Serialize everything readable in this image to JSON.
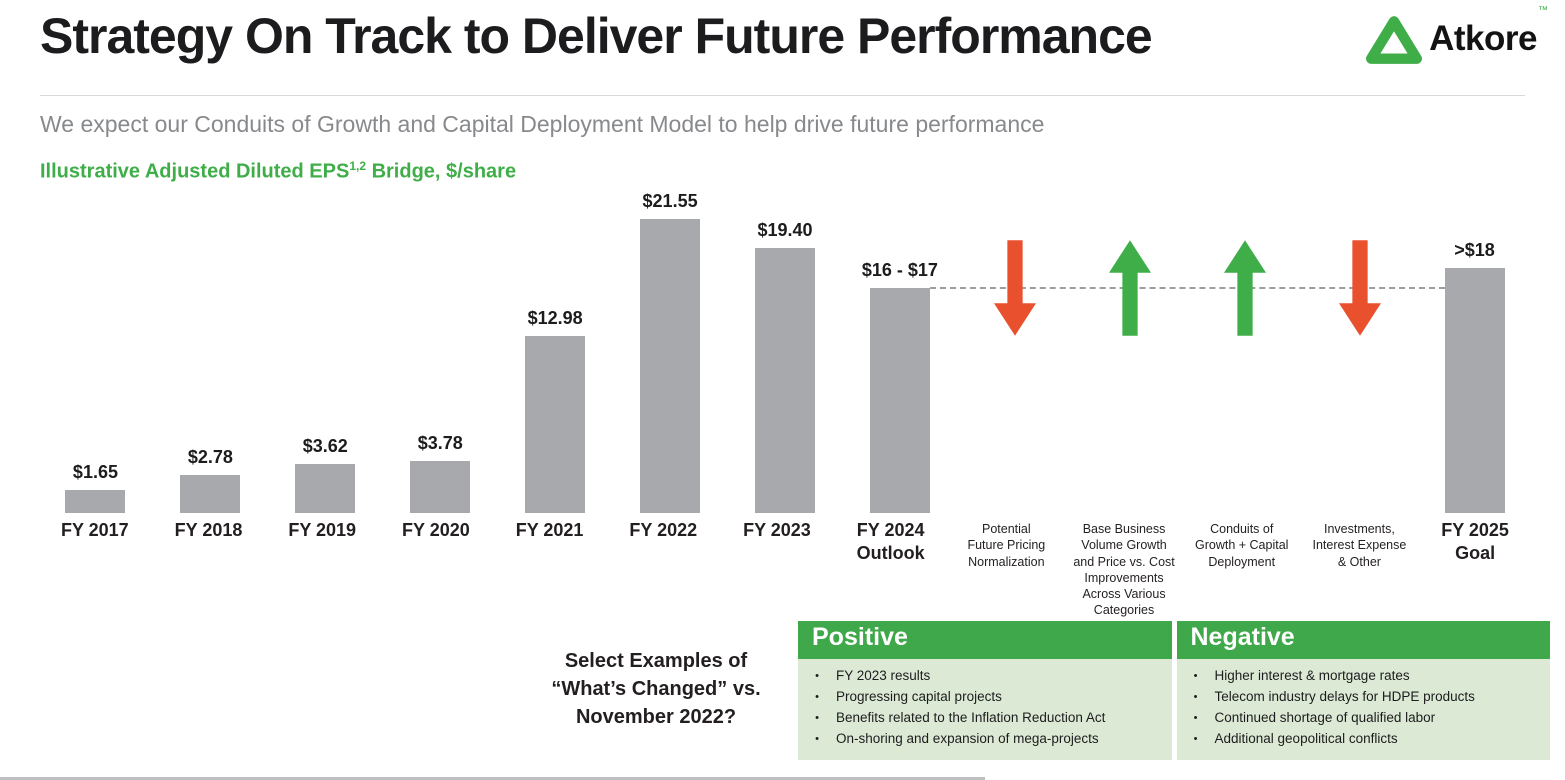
{
  "slide": {
    "title": "Strategy On Track to Deliver Future Performance",
    "subtitle": "We expect our Conduits of Growth and Capital Deployment Model to help drive future performance",
    "chart_label_prefix": "Illustrative Adjusted Diluted EPS",
    "chart_label_sup": "1,2",
    "chart_label_suffix": " Bridge, $/share"
  },
  "logo": {
    "text": "Atkore",
    "trademark": "™",
    "color": "#3FAE49"
  },
  "chart_data": {
    "type": "bar",
    "title": "Illustrative Adjusted Diluted EPS 1,2 Bridge, $/share",
    "xlabel": "",
    "ylabel": "$/share",
    "ylim": [
      0,
      22
    ],
    "grid": false,
    "bar_color": "#A7A9AC",
    "up_color": "#3FAE49",
    "down_color": "#E8502E",
    "dash_level": 16.5,
    "dash_from_col": 7,
    "dash_to_col": 12,
    "columns": [
      {
        "kind": "bar",
        "value": 1.65,
        "value_label": "$1.65",
        "label_lines": [
          "FY 2017"
        ]
      },
      {
        "kind": "bar",
        "value": 2.78,
        "value_label": "$2.78",
        "label_lines": [
          "FY 2018"
        ]
      },
      {
        "kind": "bar",
        "value": 3.62,
        "value_label": "$3.62",
        "label_lines": [
          "FY 2019"
        ]
      },
      {
        "kind": "bar",
        "value": 3.78,
        "value_label": "$3.78",
        "label_lines": [
          "FY 2020"
        ]
      },
      {
        "kind": "bar",
        "value": 12.98,
        "value_label": "$12.98",
        "label_lines": [
          "FY 2021"
        ]
      },
      {
        "kind": "bar",
        "value": 21.55,
        "value_label": "$21.55",
        "label_lines": [
          "FY 2022"
        ]
      },
      {
        "kind": "bar",
        "value": 19.4,
        "value_label": "$19.40",
        "label_lines": [
          "FY 2023"
        ]
      },
      {
        "kind": "bar",
        "value": 16.5,
        "value_label": "$16 - $17",
        "label_lines": [
          "FY 2024",
          "Outlook"
        ]
      },
      {
        "kind": "arrow",
        "direction": "down",
        "label_lines": [
          "Potential",
          "Future Pricing",
          "Normalization"
        ]
      },
      {
        "kind": "arrow",
        "direction": "up",
        "label_lines": [
          "Base Business",
          "Volume Growth",
          "and Price vs. Cost",
          "Improvements",
          "Across Various",
          "Categories"
        ]
      },
      {
        "kind": "arrow",
        "direction": "up",
        "label_lines": [
          "Conduits of",
          "Growth + Capital",
          "Deployment"
        ]
      },
      {
        "kind": "arrow",
        "direction": "down",
        "label_lines": [
          "Investments,",
          "Interest Expense",
          "& Other"
        ]
      },
      {
        "kind": "bar",
        "value": 18,
        "value_label": ">$18",
        "label_lines": [
          "FY 2025",
          "Goal"
        ]
      }
    ]
  },
  "bottom": {
    "prompt_lines": [
      "Select Examples of",
      "“What’s Changed” vs.",
      "November 2022?"
    ],
    "table": {
      "positive": {
        "header": "Positive",
        "items": [
          "FY 2023 results",
          "Progressing capital projects",
          "Benefits related to the Inflation Reduction Act",
          "On-shoring and expansion of mega-projects"
        ]
      },
      "negative": {
        "header": "Negative",
        "items": [
          "Higher interest & mortgage rates",
          "Telecom industry delays for HDPE products",
          "Continued shortage of qualified labor",
          "Additional geopolitical conflicts"
        ]
      }
    }
  }
}
